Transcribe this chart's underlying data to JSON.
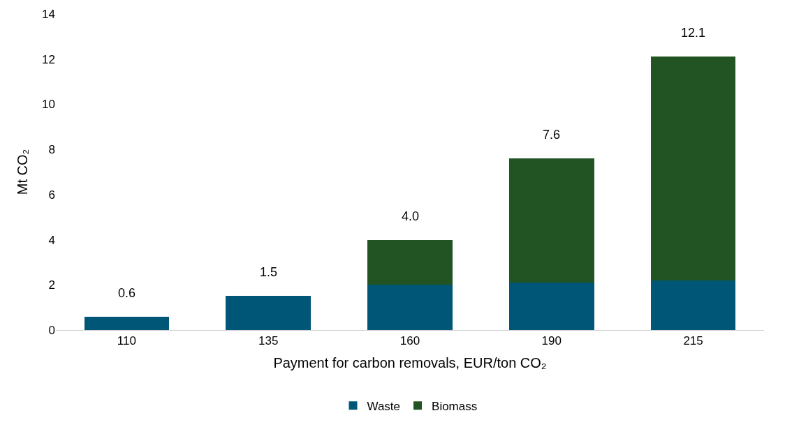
{
  "chart_data": {
    "type": "bar",
    "stacked": true,
    "xlabel": "Payment for carbon removals, EUR/ton CO₂",
    "ylabel": "Mt CO₂",
    "categories": [
      "110",
      "135",
      "160",
      "190",
      "215"
    ],
    "series": [
      {
        "name": "Waste",
        "color": "#005677",
        "values": [
          0.6,
          1.5,
          2.0,
          2.1,
          2.2
        ]
      },
      {
        "name": "Biomass",
        "color": "#225322",
        "values": [
          0,
          0,
          2.0,
          5.5,
          9.9
        ]
      }
    ],
    "totals": [
      "0.6",
      "1.5",
      "4.0",
      "7.6",
      "12.1"
    ],
    "ylim": [
      0,
      14
    ],
    "yticks": [
      0,
      2,
      4,
      6,
      8,
      10,
      12,
      14
    ],
    "legend": "bottom"
  }
}
